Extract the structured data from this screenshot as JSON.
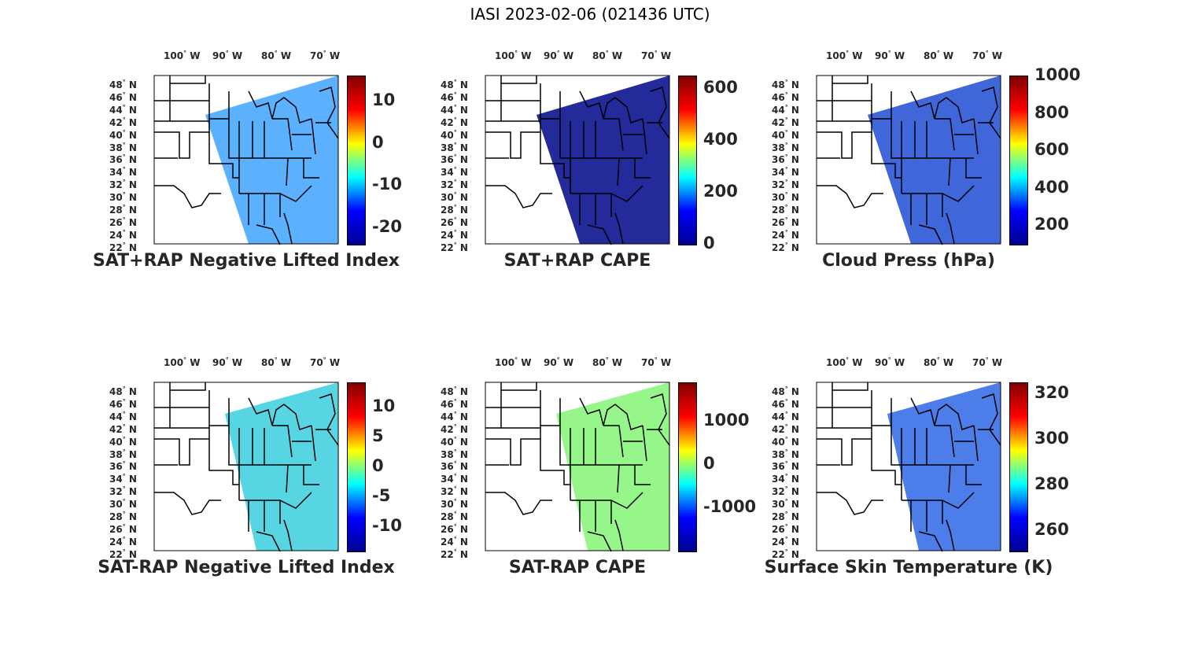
{
  "title": "IASI 2023-02-06 (021436 UTC)",
  "lon_ticks": [
    "100",
    "90",
    "80",
    "70"
  ],
  "lon_dir": "W",
  "lat_ticks": [
    "48",
    "46",
    "44",
    "42",
    "40",
    "38",
    "36",
    "34",
    "32",
    "30",
    "28",
    "26",
    "24",
    "22"
  ],
  "lat_dir": "N",
  "colormap": [
    "#00008f",
    "#0000ff",
    "#00ffff",
    "#ffff00",
    "#ff0000",
    "#800000"
  ],
  "panels": [
    {
      "title": "SAT+RAP Negative Lifted Index",
      "colorbar_ticks": [
        {
          "label": "10",
          "value": 10
        },
        {
          "label": "0",
          "value": 0
        },
        {
          "label": "-10",
          "value": -10
        },
        {
          "label": "-20",
          "value": -20
        }
      ],
      "range": [
        -24,
        16
      ]
    },
    {
      "title": "SAT+RAP CAPE",
      "colorbar_ticks": [
        {
          "label": "600",
          "value": 600
        },
        {
          "label": "400",
          "value": 400
        },
        {
          "label": "200",
          "value": 200
        },
        {
          "label": "0",
          "value": 0
        }
      ],
      "range": [
        0,
        650
      ]
    },
    {
      "title": "Cloud Press (hPa)",
      "colorbar_ticks": [
        {
          "label": "1000",
          "value": 1000
        },
        {
          "label": "800",
          "value": 800
        },
        {
          "label": "600",
          "value": 600
        },
        {
          "label": "400",
          "value": 400
        },
        {
          "label": "200",
          "value": 200
        }
      ],
      "range": [
        100,
        1000
      ]
    },
    {
      "title": "SAT-RAP Negative Lifted Index",
      "colorbar_ticks": [
        {
          "label": "10",
          "value": 10
        },
        {
          "label": "5",
          "value": 5
        },
        {
          "label": "0",
          "value": 0
        },
        {
          "label": "-5",
          "value": -5
        },
        {
          "label": "-10",
          "value": -10
        }
      ],
      "range": [
        -14,
        14
      ]
    },
    {
      "title": "SAT-RAP CAPE",
      "colorbar_ticks": [
        {
          "label": "1000",
          "value": 1000
        },
        {
          "label": "0",
          "value": 0
        },
        {
          "label": "-1000",
          "value": -1000
        }
      ],
      "range": [
        -2000,
        1900
      ]
    },
    {
      "title": "Surface Skin Temperature (K)",
      "colorbar_ticks": [
        {
          "label": "320",
          "value": 320
        },
        {
          "label": "300",
          "value": 300
        },
        {
          "label": "280",
          "value": 280
        },
        {
          "label": "260",
          "value": 260
        }
      ],
      "range": [
        251,
        325
      ]
    }
  ]
}
